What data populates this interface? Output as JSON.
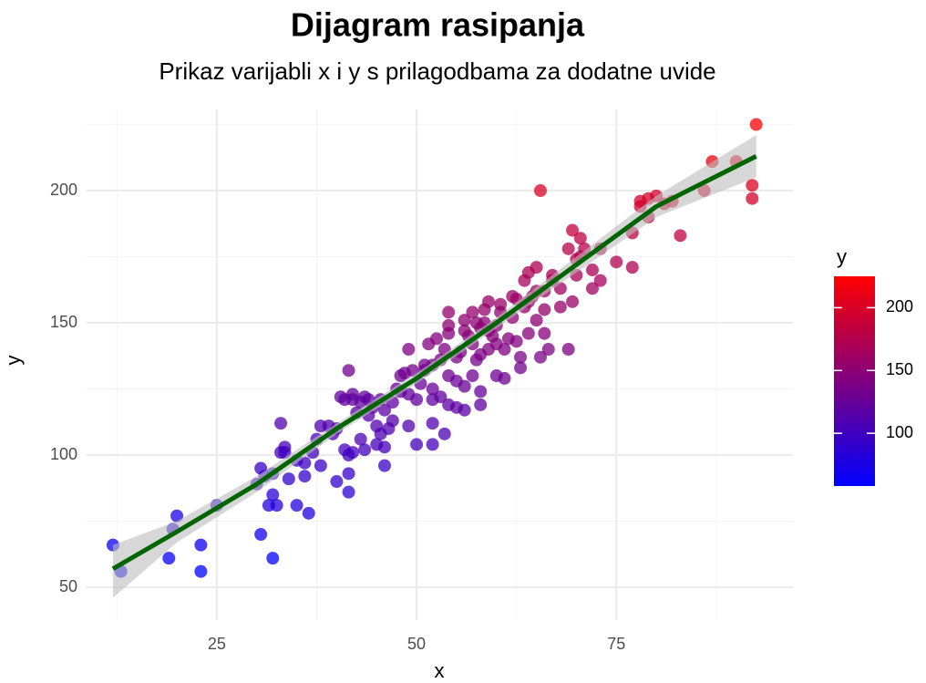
{
  "chart_data": {
    "type": "scatter",
    "title": "Dijagram rasipanja",
    "subtitle": "Prikaz varijabli x i y s prilagodbama za dodatne uvide",
    "xlabel": "x",
    "ylabel": "y",
    "legend_title": "y",
    "xlim": [
      8.7,
      97.1
    ],
    "ylim": [
      37.6,
      230.7
    ],
    "xticks": [
      25,
      50,
      75
    ],
    "yticks": [
      50,
      100,
      150,
      200
    ],
    "xminor": [
      12.5,
      37.5,
      62.5,
      87.5
    ],
    "yminor": [
      75,
      125,
      175,
      225
    ],
    "grid": true,
    "color_scale": {
      "low": "#0000ff",
      "high": "#ff0000"
    },
    "colorlim": [
      58,
      225
    ],
    "colorbar_ticks": [
      100,
      150,
      200
    ],
    "x": [
      12,
      13,
      19,
      19.5,
      20,
      23,
      23,
      25,
      30.5,
      32,
      30,
      30.5,
      31,
      32,
      31.5,
      32.5,
      32,
      33,
      33,
      33.5,
      33.5,
      34,
      35,
      36,
      36.5,
      35,
      36,
      37,
      37.5,
      38,
      38,
      39,
      39.5,
      40,
      40,
      40.5,
      41,
      41,
      41.5,
      41.5,
      41.5,
      41.5,
      42,
      42,
      42,
      42.5,
      43,
      43,
      43.5,
      43.5,
      44,
      44,
      44.5,
      45,
      45,
      45.5,
      45.5,
      46,
      46,
      46,
      46.5,
      47,
      47,
      47.5,
      48,
      48,
      48.5,
      49,
      49,
      49,
      49.5,
      50,
      50,
      50.5,
      51,
      51,
      51.5,
      52,
      52,
      52,
      52,
      52,
      52.5,
      53,
      53,
      53.5,
      53.5,
      54,
      54,
      54,
      54,
      54,
      55,
      55,
      55,
      55.5,
      56,
      56,
      56,
      56,
      56.5,
      57,
      57,
      57,
      57.5,
      57.5,
      58,
      58,
      58,
      58,
      58.5,
      58.5,
      59,
      59,
      59,
      59.5,
      60,
      60,
      60,
      60.5,
      60.5,
      61,
      61,
      61.5,
      62,
      62,
      62.5,
      62.5,
      63,
      63,
      63.5,
      63.5,
      64,
      64,
      64,
      64.5,
      65,
      65,
      65,
      65.5,
      65.5,
      66,
      66,
      66,
      66.5,
      67,
      67,
      68,
      68,
      69,
      69,
      69.5,
      69.5,
      70,
      70,
      70.5,
      71,
      70.5,
      72,
      72,
      73,
      73,
      75,
      77,
      77,
      78,
      78,
      79,
      79,
      80,
      81,
      82,
      83,
      86,
      87,
      90,
      92,
      92,
      92.5
    ],
    "y": [
      66,
      56,
      61,
      72,
      77,
      66,
      56,
      81,
      70,
      61,
      89,
      95,
      92,
      85,
      81,
      81,
      93,
      101,
      112,
      103,
      101,
      91,
      81,
      92,
      78,
      98,
      97,
      101,
      106,
      96,
      111,
      111,
      108,
      90,
      110,
      122,
      121,
      102,
      86,
      93,
      100,
      132,
      123,
      121,
      101,
      116,
      106,
      120,
      122,
      102,
      121,
      115,
      118,
      111,
      104,
      121,
      108,
      103,
      96,
      117,
      110,
      113,
      120,
      125,
      124,
      130,
      131,
      111,
      123,
      140,
      132,
      121,
      104,
      127,
      134,
      132,
      142,
      134,
      121,
      112,
      104,
      125,
      144,
      122,
      136,
      108,
      140,
      146,
      130,
      119,
      149,
      154,
      137,
      128,
      118,
      139,
      151,
      147,
      126,
      117,
      145,
      154,
      142,
      130,
      150,
      136,
      148,
      138,
      124,
      119,
      155,
      150,
      158,
      147,
      140,
      145,
      149,
      142,
      130,
      157,
      154,
      140,
      129,
      144,
      152,
      160,
      159,
      143,
      133,
      137,
      156,
      166,
      158,
      169,
      146,
      160,
      171,
      162,
      151,
      137,
      200,
      162,
      155,
      146,
      140,
      166,
      168,
      163,
      156,
      178,
      140,
      158,
      185,
      174,
      168,
      182,
      178,
      175,
      170,
      163,
      178,
      166,
      173,
      184,
      171,
      196,
      194,
      197,
      190,
      198,
      195,
      196,
      183,
      200,
      211,
      211,
      202,
      197,
      225
    ],
    "smooth": {
      "x": [
        12,
        20,
        30,
        40,
        50,
        60,
        70,
        80,
        92.5
      ],
      "y": [
        57,
        71,
        89,
        110,
        129,
        150,
        172,
        194,
        213
      ],
      "lower": [
        46,
        67,
        86,
        108,
        127,
        148,
        169,
        190,
        205
      ],
      "upper": [
        66,
        75,
        92,
        112,
        131,
        152,
        175,
        198,
        221
      ],
      "color": "#006400",
      "band_color": "#bdbdbd"
    }
  }
}
